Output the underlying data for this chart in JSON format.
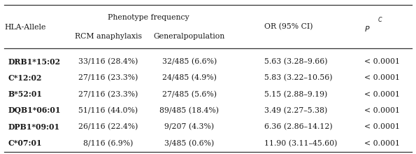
{
  "header_col0": "HLA-Allele",
  "header_pf": "Phenotype frequency",
  "header_rcm": "RCM anaphylaxis",
  "header_gp": "Generalpopulation",
  "header_or": "OR (95% CI)",
  "header_p": "P",
  "header_pc": "C",
  "rows": [
    [
      "DRB1∕15:02",
      "33/116 (28.4%)",
      "32/485 (6.6%)",
      "5.63 (3.28–9.66)",
      "< 0.0001"
    ],
    [
      "C∕12:02",
      "27/116 (23.3%)",
      "24/485 (4.9%)",
      "5.83 (3.22–10.56)",
      "< 0.0001"
    ],
    [
      "B∕52:01",
      "27/116 (23.3%)",
      "27/485 (5.6%)",
      "5.15 (2.88–9.19)",
      "< 0.0001"
    ],
    [
      "DQB1∕06:01",
      "51/116 (44.0%)",
      "89/485 (18.4%)",
      "3.49 (2.27–5.38)",
      "< 0.0001"
    ],
    [
      "DPB1∕09:01",
      "26/116 (22.4%)",
      "9/207 (4.3%)",
      "6.36 (2.86–14.12)",
      "< 0.0001"
    ],
    [
      "C∕07:01",
      "8/116 (6.9%)",
      "3/485 (0.6%)",
      "11.90 (3.11–45.60)",
      "< 0.0001"
    ]
  ],
  "rows_display": [
    [
      "DRB1*15:02",
      "33/116 (28.4%)",
      "32/485 (6.6%)",
      "5.63 (3.28–9.66)",
      "< 0.0001"
    ],
    [
      "C*12:02",
      "27/116 (23.3%)",
      "24/485 (4.9%)",
      "5.83 (3.22–10.56)",
      "< 0.0001"
    ],
    [
      "B*52:01",
      "27/116 (23.3%)",
      "27/485 (5.6%)",
      "5.15 (2.88–9.19)",
      "< 0.0001"
    ],
    [
      "DQB1*06:01",
      "51/116 (44.0%)",
      "89/485 (18.4%)",
      "3.49 (2.27–5.38)",
      "< 0.0001"
    ],
    [
      "DPB1*09:01",
      "26/116 (22.4%)",
      "9/207 (4.3%)",
      "6.36 (2.86–14.12)",
      "< 0.0001"
    ],
    [
      "C*07:01",
      "8/116 (6.9%)",
      "3/485 (0.6%)",
      "11.90 (3.11–45.60)",
      "< 0.0001"
    ]
  ],
  "background_color": "#ffffff",
  "text_color": "#1a1a1a",
  "font_size": 7.8,
  "line_color": "#333333"
}
